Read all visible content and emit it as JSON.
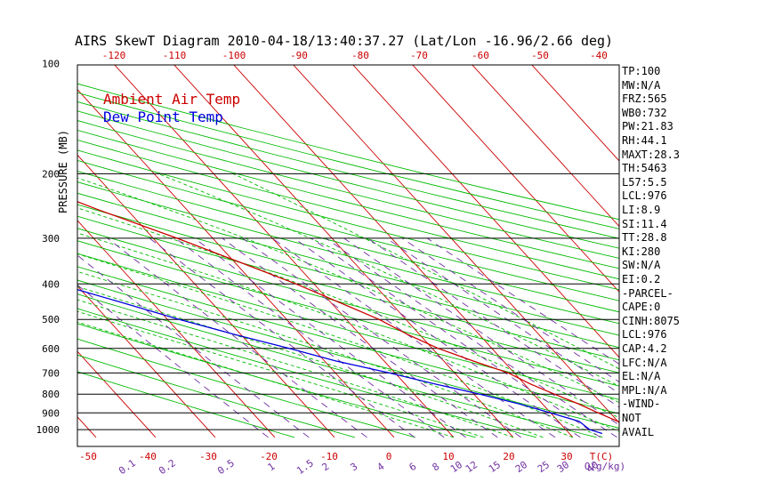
{
  "title": "AIRS SkewT Diagram 2010-04-18/13:40:37.27 (Lat/Lon -16.96/2.66 deg)",
  "ylabel": "PRESSURE (MB)",
  "legend": [
    {
      "label": "Ambient Air Temp",
      "color": "#cc0000"
    },
    {
      "label": "Dew Point Temp",
      "color": "#0000dd"
    }
  ],
  "colors": {
    "isotherm": "#cc0000",
    "dry_adiabat": "#00bb00",
    "moist_adiabat": "#00bb00",
    "mixing_ratio": "#7030a0",
    "isobar": "#000000"
  },
  "top_temp_ticks": [
    "-120",
    "-110",
    "-100",
    "-90",
    "-80",
    "-70",
    "-60",
    "-50",
    "-40"
  ],
  "bottom_temp_ticks": [
    "-50",
    "-40",
    "-30",
    "-20",
    "-10",
    "0",
    "10",
    "20",
    "30",
    "T(C)"
  ],
  "mixing_ratio_labels": [
    "0.1",
    "0.2",
    "0.5",
    "1",
    "1.5",
    "2",
    "3",
    "4",
    "6",
    "8",
    "10",
    "12",
    "15",
    "20",
    "25",
    "30",
    "40",
    "Q(g/kg)"
  ],
  "pressure_labels": [
    "100",
    "200",
    "300",
    "400",
    "500",
    "600",
    "700",
    "800",
    "900",
    "1000"
  ],
  "stats": [
    "TP:100",
    "MW:N/A",
    "FRZ:565",
    "WB0:732",
    "PW:21.83",
    "RH:44.1",
    "MAXT:28.3",
    "TH:5463",
    "L57:5.5",
    "LCL:976",
    "LI:8.9",
    "SI:11.4",
    "TT:28.8",
    "KI:280",
    "SW:N/A",
    "EI:0.2",
    "-PARCEL-",
    "CAPE:0",
    "CINH:8075",
    "LCL:976",
    "CAP:4.2",
    "LFC:N/A",
    "EL:N/A",
    "MPL:N/A",
    "-WIND-",
    "NOT",
    "AVAIL"
  ],
  "chart_data": {
    "type": "line",
    "title": "AIRS SkewT Diagram 2010-04-18/13:40:37.27 (Lat/Lon -16.96/2.66 deg)",
    "ylabel": "PRESSURE (MB)",
    "xlabel": "T(C)",
    "y_scale": "log-pressure",
    "ylim": [
      1050,
      100
    ],
    "series": [
      {
        "name": "Ambient Air Temp",
        "pressure": [
          1025,
          1000,
          950,
          900,
          850,
          800,
          750,
          700,
          650,
          600,
          550,
          500,
          450,
          400,
          350,
          300,
          250,
          200,
          175,
          150,
          125,
          100
        ],
        "temp": [
          21.5,
          20.5,
          20,
          18,
          16,
          13.5,
          11,
          9,
          5,
          1,
          -2,
          -4.5,
          -8.5,
          -13,
          -19,
          -26,
          -35,
          -45,
          -52,
          -60,
          -73,
          -82
        ]
      },
      {
        "name": "Dew Point Temp",
        "pressure": [
          1025,
          1000,
          950,
          900,
          850,
          800,
          750,
          700,
          650,
          600,
          550,
          500,
          450,
          400,
          350,
          300,
          250,
          200,
          175,
          150,
          125,
          100
        ],
        "temp": [
          15.5,
          14,
          13.5,
          10,
          6,
          1,
          -5,
          -11,
          -18,
          -24,
          -31,
          -38,
          -45,
          -53,
          -61,
          -70,
          -78,
          -88,
          -93,
          -99,
          -104,
          -111
        ]
      }
    ]
  }
}
